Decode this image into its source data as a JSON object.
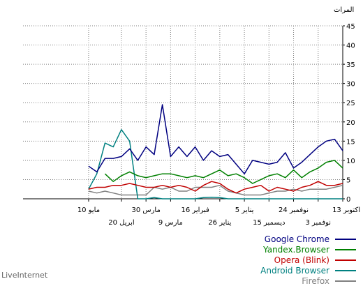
{
  "chart_data": {
    "type": "line",
    "title": "",
    "ylabel": "المرات",
    "ylim": [
      0,
      45
    ],
    "yticks": [
      0,
      5,
      10,
      15,
      20,
      25,
      30,
      35,
      40,
      45
    ],
    "x_axis_direction": "right-to-left",
    "x_points": 40,
    "grid": true,
    "xtick_labels": [
      {
        "index": 0,
        "row": 1,
        "label": "13 اكتوبر"
      },
      {
        "index": 3,
        "row": 2,
        "label": "3 نوفمبر"
      },
      {
        "index": 6,
        "row": 1,
        "label": "24 نوفمبر"
      },
      {
        "index": 9,
        "row": 2,
        "label": "15 ديسمبر"
      },
      {
        "index": 12,
        "row": 1,
        "label": "5 يناير"
      },
      {
        "index": 15,
        "row": 2,
        "label": "26 يناير"
      },
      {
        "index": 18,
        "row": 1,
        "label": "16 فبراير"
      },
      {
        "index": 21,
        "row": 2,
        "label": "9 مارس"
      },
      {
        "index": 24,
        "row": 1,
        "label": "30 مارس"
      },
      {
        "index": 27,
        "row": 2,
        "label": "20 ابريل"
      },
      {
        "index": 31,
        "row": 1,
        "label": "10 مايو"
      }
    ],
    "series": [
      {
        "name": "Google Chrome",
        "color": "#000080",
        "values": [
          12.5,
          15.5,
          15,
          13.5,
          11.5,
          9.5,
          8,
          12,
          9.5,
          9,
          9.5,
          10,
          6.5,
          9,
          11.5,
          11,
          12.5,
          10,
          13.5,
          11,
          13.5,
          11,
          24.5,
          11.5,
          13.5,
          10,
          13,
          11,
          10.5,
          10.5,
          7,
          8.5
        ]
      },
      {
        "name": "Yandex.Browser",
        "color": "#008000",
        "values": [
          8,
          10,
          9.5,
          8,
          7,
          5.5,
          7.5,
          5.5,
          6.5,
          6,
          5,
          4,
          5.5,
          6.5,
          6,
          7.5,
          6.5,
          5.5,
          6,
          5.5,
          6,
          6.5,
          6.5,
          6,
          5.5,
          6,
          7,
          6,
          4.5,
          6.5
        ]
      },
      {
        "name": "Opera (Blink)",
        "color": "#c00000",
        "values": [
          4,
          3.5,
          3.5,
          4.5,
          3.5,
          3,
          2,
          2.5,
          3,
          2,
          3.5,
          3,
          2.5,
          1.5,
          2.5,
          4,
          4.5,
          3.5,
          2,
          3,
          3.5,
          3,
          3.5,
          3,
          3,
          3.5,
          4,
          3.5,
          3.5,
          3,
          3,
          2.5
        ]
      },
      {
        "name": "Android Browser",
        "color": "#008080",
        "values": [
          0,
          0,
          0,
          0,
          0,
          0,
          0,
          0,
          0,
          0,
          0,
          0,
          0,
          0,
          0,
          0.3,
          0.4,
          0.3,
          0,
          0,
          0,
          0,
          0,
          0.3,
          0,
          0,
          15,
          18,
          13.5,
          14.5,
          6.5,
          2.5
        ]
      },
      {
        "name": "Firefox",
        "color": "#808080",
        "values": [
          3.5,
          3,
          2.5,
          2.5,
          2.5,
          2,
          2.5,
          2,
          2,
          1.5,
          1,
          1,
          1,
          1.5,
          2,
          3.5,
          3,
          3,
          3,
          2,
          2,
          3,
          2.5,
          3,
          1,
          1,
          1,
          1,
          1.5,
          2,
          1.5,
          2
        ]
      }
    ]
  },
  "brand": "LiveInternet"
}
